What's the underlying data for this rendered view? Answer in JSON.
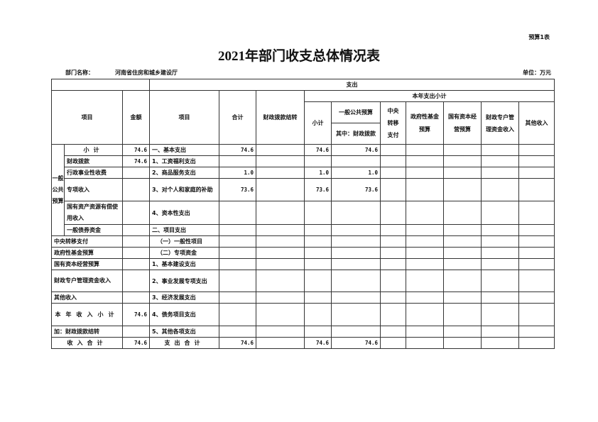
{
  "header": {
    "form_no": "预算1表",
    "title": "2021年部门收支总体情况表",
    "dept_label": "部门名称：",
    "dept_name": "河南省住房和城乡建设厅",
    "unit": "单位：万元"
  },
  "columns": {
    "expense": "支出",
    "item_left": "项目",
    "amount": "金额",
    "item_right": "项目",
    "total": "合计",
    "carryover": "财政拨款结转",
    "year_subtotal": "本年支出小计",
    "subtotal": "小计",
    "general_budget": "一般公共预算",
    "of_which_appropriation": "其中：财政拨款",
    "central_transfer": "中央转移支付",
    "gov_fund": "政府性基金预算",
    "state_capital": "国有资本经营预算",
    "special_account": "财政专户管理资金收入",
    "other_income": "其他收入"
  },
  "group_label": "一般公共预算",
  "rows": [
    {
      "left": "小计",
      "amount": "74.6",
      "right": "一、基本支出",
      "total": "74.6",
      "carry": "",
      "sub": "74.6",
      "gen": "74.6",
      "central": "",
      "fund": "",
      "capital": "",
      "special": "",
      "other": ""
    },
    {
      "left": "财政拨款",
      "amount": "74.6",
      "right": "1、工资福利支出",
      "total": "",
      "carry": "",
      "sub": "",
      "gen": "",
      "central": "",
      "fund": "",
      "capital": "",
      "special": "",
      "other": ""
    },
    {
      "left": "行政事业性收费",
      "amount": "",
      "right": "2、商品服务支出",
      "total": "1.0",
      "carry": "",
      "sub": "1.0",
      "gen": "1.0",
      "central": "",
      "fund": "",
      "capital": "",
      "special": "",
      "other": ""
    },
    {
      "left": "专项收入",
      "amount": "",
      "right": "3、对个人和家庭的补助",
      "total": "73.6",
      "carry": "",
      "sub": "73.6",
      "gen": "73.6",
      "central": "",
      "fund": "",
      "capital": "",
      "special": "",
      "other": ""
    },
    {
      "left": "国有资产资源有偿使用收入",
      "amount": "",
      "right": "4、资本性支出",
      "total": "",
      "carry": "",
      "sub": "",
      "gen": "",
      "central": "",
      "fund": "",
      "capital": "",
      "special": "",
      "other": ""
    },
    {
      "left": "一般债券资金",
      "amount": "",
      "right": "二、项目支出",
      "total": "",
      "carry": "",
      "sub": "",
      "gen": "",
      "central": "",
      "fund": "",
      "capital": "",
      "special": "",
      "other": ""
    },
    {
      "left": "中央转移支付",
      "amount": "",
      "right": "（一）一般性项目",
      "total": "",
      "carry": "",
      "sub": "",
      "gen": "",
      "central": "",
      "fund": "",
      "capital": "",
      "special": "",
      "other": ""
    },
    {
      "left": "政府性基金预算",
      "amount": "",
      "right": "（二）专项资金",
      "total": "",
      "carry": "",
      "sub": "",
      "gen": "",
      "central": "",
      "fund": "",
      "capital": "",
      "special": "",
      "other": ""
    },
    {
      "left": "国有资本经营预算",
      "amount": "",
      "right": "1、基本建设支出",
      "total": "",
      "carry": "",
      "sub": "",
      "gen": "",
      "central": "",
      "fund": "",
      "capital": "",
      "special": "",
      "other": ""
    },
    {
      "left": "财政专户管理资金收入",
      "amount": "",
      "right": "2、事业发展专项支出",
      "total": "",
      "carry": "",
      "sub": "",
      "gen": "",
      "central": "",
      "fund": "",
      "capital": "",
      "special": "",
      "other": ""
    },
    {
      "left": "其他收入",
      "amount": "",
      "right": "3、经济发展支出",
      "total": "",
      "carry": "",
      "sub": "",
      "gen": "",
      "central": "",
      "fund": "",
      "capital": "",
      "special": "",
      "other": ""
    },
    {
      "left": "本年收入小计",
      "amount": "74.6",
      "right": "4、债务项目支出",
      "total": "",
      "carry": "",
      "sub": "",
      "gen": "",
      "central": "",
      "fund": "",
      "capital": "",
      "special": "",
      "other": ""
    },
    {
      "left": "加：财政拨款结转",
      "amount": "",
      "right": "5、其他各项支出",
      "total": "",
      "carry": "",
      "sub": "",
      "gen": "",
      "central": "",
      "fund": "",
      "capital": "",
      "special": "",
      "other": ""
    },
    {
      "left": "收入合计",
      "amount": "74.6",
      "right": "支出合计",
      "total": "74.6",
      "carry": "",
      "sub": "74.6",
      "gen": "74.6",
      "central": "",
      "fund": "",
      "capital": "",
      "special": "",
      "other": ""
    }
  ]
}
